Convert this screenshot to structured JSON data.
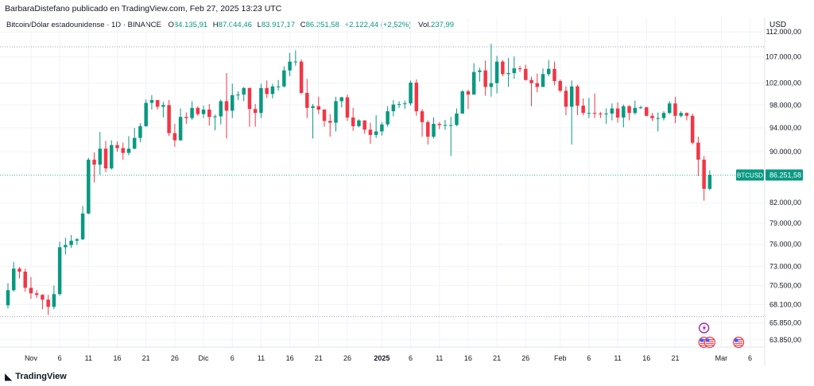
{
  "header": {
    "published": "BarbaraDistefano publicado en TradingView.com, Feb 27, 2025 13:23 UTC",
    "symbol": "Bitcoin/Dólar estadounidense · 1D · BINANCE",
    "open_label": "O",
    "open": "84.135,91",
    "high_label": "H",
    "high": "87.044,46",
    "low_label": "L",
    "low": "83.917,17",
    "close_label": "C",
    "close": "86.251,58",
    "change": "+2.122,44 (+2,52%)",
    "vol_label": "Vol.",
    "vol": "237,99"
  },
  "currency": "USD",
  "brand": {
    "name": "TradingView",
    "icon": "tradingview-logo-icon"
  },
  "colors": {
    "up": "#089981",
    "down": "#f23645",
    "grid": "#f0f3fa",
    "price_line": "#089981"
  },
  "chart_data": {
    "type": "candlestick",
    "symbol": "BTCUSD",
    "interval": "1D",
    "last_price_label": "BTCUSD",
    "last_price": 86251.58,
    "last_price_text": "86.251,58",
    "y_scale": "log",
    "ylim": [
      63000,
      115000
    ],
    "y_ticks": [
      {
        "value": 112000,
        "label": "112.000,00"
      },
      {
        "value": 107000,
        "label": "107.000,00"
      },
      {
        "value": 102000,
        "label": "102.000,00"
      },
      {
        "value": 98000,
        "label": "98.000,00"
      },
      {
        "value": 94000,
        "label": "94.000,00"
      },
      {
        "value": 90000,
        "label": "90.000,00"
      },
      {
        "value": 82000,
        "label": "82.000,00"
      },
      {
        "value": 79000,
        "label": "79.000,00"
      },
      {
        "value": 76000,
        "label": "76.000,00"
      },
      {
        "value": 73000,
        "label": "73.000,00"
      },
      {
        "value": 70500,
        "label": "70.500,00"
      },
      {
        "value": 68100,
        "label": "68.100,00"
      },
      {
        "value": 65850,
        "label": "65.850,00"
      },
      {
        "value": 63850,
        "label": "63.850,00"
      }
    ],
    "x_ticks": [
      {
        "date": "2024-11-01",
        "label": "Nov"
      },
      {
        "date": "2024-11-06",
        "label": "6"
      },
      {
        "date": "2024-11-11",
        "label": "11"
      },
      {
        "date": "2024-11-16",
        "label": "16"
      },
      {
        "date": "2024-11-21",
        "label": "21"
      },
      {
        "date": "2024-11-26",
        "label": "26"
      },
      {
        "date": "2024-12-01",
        "label": "Dic"
      },
      {
        "date": "2024-12-06",
        "label": "6"
      },
      {
        "date": "2024-12-11",
        "label": "11"
      },
      {
        "date": "2024-12-16",
        "label": "16"
      },
      {
        "date": "2024-12-21",
        "label": "21"
      },
      {
        "date": "2024-12-26",
        "label": "26"
      },
      {
        "date": "2025-01-01",
        "label": "2025",
        "bold": true
      },
      {
        "date": "2025-01-06",
        "label": "6"
      },
      {
        "date": "2025-01-11",
        "label": "11"
      },
      {
        "date": "2025-01-16",
        "label": "16"
      },
      {
        "date": "2025-01-21",
        "label": "21"
      },
      {
        "date": "2025-01-26",
        "label": "26"
      },
      {
        "date": "2025-02-01",
        "label": "Feb"
      },
      {
        "date": "2025-02-06",
        "label": "6"
      },
      {
        "date": "2025-02-11",
        "label": "11"
      },
      {
        "date": "2025-02-16",
        "label": "16"
      },
      {
        "date": "2025-02-21",
        "label": "21"
      },
      {
        "date": "2025-03-01",
        "label": "Mar"
      },
      {
        "date": "2025-03-06",
        "label": "6"
      }
    ],
    "dotted_lines": [
      109000,
      66600
    ],
    "date_range": [
      "2024-10-28",
      "2025-03-08"
    ],
    "candles": [
      {
        "date": "2024-10-28",
        "o": 68000,
        "h": 70800,
        "l": 67600,
        "c": 69900
      },
      {
        "date": "2024-10-29",
        "o": 69900,
        "h": 73600,
        "l": 69700,
        "c": 72700
      },
      {
        "date": "2024-10-30",
        "o": 72700,
        "h": 72900,
        "l": 71400,
        "c": 72300
      },
      {
        "date": "2024-10-31",
        "o": 72300,
        "h": 72700,
        "l": 69700,
        "c": 70200
      },
      {
        "date": "2024-11-01",
        "o": 70200,
        "h": 71600,
        "l": 68800,
        "c": 69500
      },
      {
        "date": "2024-11-02",
        "o": 69500,
        "h": 69900,
        "l": 68900,
        "c": 69300
      },
      {
        "date": "2024-11-03",
        "o": 69300,
        "h": 69400,
        "l": 67500,
        "c": 68700
      },
      {
        "date": "2024-11-04",
        "o": 68700,
        "h": 69300,
        "l": 66800,
        "c": 67800
      },
      {
        "date": "2024-11-05",
        "o": 67800,
        "h": 70500,
        "l": 67500,
        "c": 69400
      },
      {
        "date": "2024-11-06",
        "o": 69400,
        "h": 76400,
        "l": 69200,
        "c": 75600
      },
      {
        "date": "2024-11-07",
        "o": 75600,
        "h": 76900,
        "l": 74600,
        "c": 75900
      },
      {
        "date": "2024-11-08",
        "o": 75900,
        "h": 77300,
        "l": 75500,
        "c": 76500
      },
      {
        "date": "2024-11-09",
        "o": 76500,
        "h": 76900,
        "l": 75900,
        "c": 76700
      },
      {
        "date": "2024-11-10",
        "o": 76700,
        "h": 81500,
        "l": 76600,
        "c": 80400
      },
      {
        "date": "2024-11-11",
        "o": 80400,
        "h": 89000,
        "l": 80300,
        "c": 88700
      },
      {
        "date": "2024-11-12",
        "o": 88700,
        "h": 89900,
        "l": 85100,
        "c": 87900
      },
      {
        "date": "2024-11-13",
        "o": 87900,
        "h": 93300,
        "l": 86300,
        "c": 90500
      },
      {
        "date": "2024-11-14",
        "o": 90500,
        "h": 91800,
        "l": 86700,
        "c": 87300
      },
      {
        "date": "2024-11-15",
        "o": 87300,
        "h": 91900,
        "l": 87100,
        "c": 91100
      },
      {
        "date": "2024-11-16",
        "o": 91100,
        "h": 91700,
        "l": 90000,
        "c": 90600
      },
      {
        "date": "2024-11-17",
        "o": 90600,
        "h": 91500,
        "l": 88700,
        "c": 89800
      },
      {
        "date": "2024-11-18",
        "o": 89800,
        "h": 92600,
        "l": 89400,
        "c": 90500
      },
      {
        "date": "2024-11-19",
        "o": 90500,
        "h": 94000,
        "l": 90400,
        "c": 92300
      },
      {
        "date": "2024-11-20",
        "o": 92300,
        "h": 94800,
        "l": 91600,
        "c": 94300
      },
      {
        "date": "2024-11-21",
        "o": 94300,
        "h": 99000,
        "l": 94200,
        "c": 98400
      },
      {
        "date": "2024-11-22",
        "o": 98400,
        "h": 99800,
        "l": 97200,
        "c": 98900
      },
      {
        "date": "2024-11-23",
        "o": 98900,
        "h": 98900,
        "l": 97200,
        "c": 97700
      },
      {
        "date": "2024-11-24",
        "o": 97700,
        "h": 98600,
        "l": 95800,
        "c": 98000
      },
      {
        "date": "2024-11-25",
        "o": 98000,
        "h": 98900,
        "l": 92600,
        "c": 93100
      },
      {
        "date": "2024-11-26",
        "o": 93100,
        "h": 94700,
        "l": 90800,
        "c": 91900
      },
      {
        "date": "2024-11-27",
        "o": 91900,
        "h": 97400,
        "l": 91800,
        "c": 95900
      },
      {
        "date": "2024-11-28",
        "o": 95900,
        "h": 96700,
        "l": 94700,
        "c": 95700
      },
      {
        "date": "2024-11-29",
        "o": 95700,
        "h": 98700,
        "l": 95400,
        "c": 97500
      },
      {
        "date": "2024-11-30",
        "o": 97500,
        "h": 97800,
        "l": 96100,
        "c": 96400
      },
      {
        "date": "2024-12-01",
        "o": 96400,
        "h": 97900,
        "l": 95700,
        "c": 97200
      },
      {
        "date": "2024-12-02",
        "o": 97200,
        "h": 98200,
        "l": 94400,
        "c": 95900
      },
      {
        "date": "2024-12-03",
        "o": 95900,
        "h": 96300,
        "l": 93600,
        "c": 96000
      },
      {
        "date": "2024-12-04",
        "o": 96000,
        "h": 99000,
        "l": 94600,
        "c": 98700
      },
      {
        "date": "2024-12-05",
        "o": 98700,
        "h": 103900,
        "l": 92200,
        "c": 97000
      },
      {
        "date": "2024-12-06",
        "o": 97000,
        "h": 101900,
        "l": 95700,
        "c": 99800
      },
      {
        "date": "2024-12-07",
        "o": 99800,
        "h": 100500,
        "l": 98900,
        "c": 99900
      },
      {
        "date": "2024-12-08",
        "o": 99900,
        "h": 101300,
        "l": 98700,
        "c": 101100
      },
      {
        "date": "2024-12-09",
        "o": 101100,
        "h": 101200,
        "l": 94200,
        "c": 97300
      },
      {
        "date": "2024-12-10",
        "o": 97300,
        "h": 98200,
        "l": 94200,
        "c": 96600
      },
      {
        "date": "2024-12-11",
        "o": 96600,
        "h": 101900,
        "l": 95700,
        "c": 101100
      },
      {
        "date": "2024-12-12",
        "o": 101100,
        "h": 102500,
        "l": 99300,
        "c": 100000
      },
      {
        "date": "2024-12-13",
        "o": 100000,
        "h": 101900,
        "l": 99200,
        "c": 101400
      },
      {
        "date": "2024-12-14",
        "o": 101400,
        "h": 102600,
        "l": 100600,
        "c": 101400
      },
      {
        "date": "2024-12-15",
        "o": 101400,
        "h": 105200,
        "l": 101200,
        "c": 104400
      },
      {
        "date": "2024-12-16",
        "o": 104400,
        "h": 107800,
        "l": 103300,
        "c": 106100
      },
      {
        "date": "2024-12-17",
        "o": 106100,
        "h": 108300,
        "l": 105300,
        "c": 106100
      },
      {
        "date": "2024-12-18",
        "o": 106100,
        "h": 106500,
        "l": 100000,
        "c": 100200
      },
      {
        "date": "2024-12-19",
        "o": 100200,
        "h": 102800,
        "l": 95700,
        "c": 97500
      },
      {
        "date": "2024-12-20",
        "o": 97500,
        "h": 98200,
        "l": 92200,
        "c": 97800
      },
      {
        "date": "2024-12-21",
        "o": 97800,
        "h": 99500,
        "l": 96400,
        "c": 97200
      },
      {
        "date": "2024-12-22",
        "o": 97200,
        "h": 97300,
        "l": 94200,
        "c": 95200
      },
      {
        "date": "2024-12-23",
        "o": 95200,
        "h": 96400,
        "l": 92500,
        "c": 94900
      },
      {
        "date": "2024-12-24",
        "o": 94900,
        "h": 99500,
        "l": 93400,
        "c": 98700
      },
      {
        "date": "2024-12-25",
        "o": 98700,
        "h": 99500,
        "l": 97600,
        "c": 99400
      },
      {
        "date": "2024-12-26",
        "o": 99400,
        "h": 99900,
        "l": 95200,
        "c": 95800
      },
      {
        "date": "2024-12-27",
        "o": 95800,
        "h": 97500,
        "l": 93500,
        "c": 94300
      },
      {
        "date": "2024-12-28",
        "o": 94300,
        "h": 95500,
        "l": 94100,
        "c": 95300
      },
      {
        "date": "2024-12-29",
        "o": 95300,
        "h": 95300,
        "l": 93000,
        "c": 93700
      },
      {
        "date": "2024-12-30",
        "o": 93700,
        "h": 94900,
        "l": 91300,
        "c": 92800
      },
      {
        "date": "2024-12-31",
        "o": 92800,
        "h": 96200,
        "l": 92300,
        "c": 93400
      },
      {
        "date": "2025-01-01",
        "o": 93400,
        "h": 95000,
        "l": 92700,
        "c": 94600
      },
      {
        "date": "2025-01-02",
        "o": 94600,
        "h": 97800,
        "l": 94200,
        "c": 96900
      },
      {
        "date": "2025-01-03",
        "o": 96900,
        "h": 98900,
        "l": 96000,
        "c": 98100
      },
      {
        "date": "2025-01-04",
        "o": 98100,
        "h": 98700,
        "l": 97500,
        "c": 98200
      },
      {
        "date": "2025-01-05",
        "o": 98200,
        "h": 98800,
        "l": 97300,
        "c": 98300
      },
      {
        "date": "2025-01-06",
        "o": 98300,
        "h": 102500,
        "l": 97900,
        "c": 102100
      },
      {
        "date": "2025-01-07",
        "o": 102100,
        "h": 102700,
        "l": 96100,
        "c": 96900
      },
      {
        "date": "2025-01-08",
        "o": 96900,
        "h": 97300,
        "l": 92500,
        "c": 95000
      },
      {
        "date": "2025-01-09",
        "o": 95000,
        "h": 95300,
        "l": 91200,
        "c": 92500
      },
      {
        "date": "2025-01-10",
        "o": 92500,
        "h": 95800,
        "l": 92200,
        "c": 94700
      },
      {
        "date": "2025-01-11",
        "o": 94700,
        "h": 95000,
        "l": 93800,
        "c": 94500
      },
      {
        "date": "2025-01-12",
        "o": 94500,
        "h": 95400,
        "l": 93700,
        "c": 94500
      },
      {
        "date": "2025-01-13",
        "o": 94500,
        "h": 95900,
        "l": 89300,
        "c": 94500
      },
      {
        "date": "2025-01-14",
        "o": 94500,
        "h": 97400,
        "l": 94300,
        "c": 96500
      },
      {
        "date": "2025-01-15",
        "o": 96500,
        "h": 100700,
        "l": 96500,
        "c": 100500
      },
      {
        "date": "2025-01-16",
        "o": 100500,
        "h": 100800,
        "l": 97300,
        "c": 99900
      },
      {
        "date": "2025-01-17",
        "o": 99900,
        "h": 105800,
        "l": 99900,
        "c": 104100
      },
      {
        "date": "2025-01-18",
        "o": 104100,
        "h": 104900,
        "l": 102300,
        "c": 104400
      },
      {
        "date": "2025-01-19",
        "o": 104400,
        "h": 106300,
        "l": 99700,
        "c": 101300
      },
      {
        "date": "2025-01-20",
        "o": 101300,
        "h": 109600,
        "l": 99500,
        "c": 102000
      },
      {
        "date": "2025-01-21",
        "o": 102000,
        "h": 107200,
        "l": 100100,
        "c": 106100
      },
      {
        "date": "2025-01-22",
        "o": 106100,
        "h": 106400,
        "l": 103300,
        "c": 103700
      },
      {
        "date": "2025-01-23",
        "o": 103700,
        "h": 106800,
        "l": 101300,
        "c": 103900
      },
      {
        "date": "2025-01-24",
        "o": 103900,
        "h": 107100,
        "l": 102800,
        "c": 104800
      },
      {
        "date": "2025-01-25",
        "o": 104800,
        "h": 105300,
        "l": 104100,
        "c": 104700
      },
      {
        "date": "2025-01-26",
        "o": 104700,
        "h": 105500,
        "l": 102500,
        "c": 102600
      },
      {
        "date": "2025-01-27",
        "o": 102600,
        "h": 103200,
        "l": 97800,
        "c": 102000
      },
      {
        "date": "2025-01-28",
        "o": 102000,
        "h": 103800,
        "l": 100300,
        "c": 101300
      },
      {
        "date": "2025-01-29",
        "o": 101300,
        "h": 104800,
        "l": 101300,
        "c": 103700
      },
      {
        "date": "2025-01-30",
        "o": 103700,
        "h": 106400,
        "l": 103300,
        "c": 104700
      },
      {
        "date": "2025-01-31",
        "o": 104700,
        "h": 106100,
        "l": 101600,
        "c": 102400
      },
      {
        "date": "2025-02-01",
        "o": 102400,
        "h": 102700,
        "l": 100300,
        "c": 100600
      },
      {
        "date": "2025-02-02",
        "o": 100600,
        "h": 101400,
        "l": 96200,
        "c": 97700
      },
      {
        "date": "2025-02-03",
        "o": 97700,
        "h": 102500,
        "l": 91200,
        "c": 101400
      },
      {
        "date": "2025-02-04",
        "o": 101400,
        "h": 101700,
        "l": 96200,
        "c": 97900
      },
      {
        "date": "2025-02-05",
        "o": 97900,
        "h": 99200,
        "l": 96200,
        "c": 96600
      },
      {
        "date": "2025-02-06",
        "o": 96600,
        "h": 99300,
        "l": 95700,
        "c": 96600
      },
      {
        "date": "2025-02-07",
        "o": 96600,
        "h": 100100,
        "l": 95700,
        "c": 96500
      },
      {
        "date": "2025-02-08",
        "o": 96500,
        "h": 96800,
        "l": 95700,
        "c": 96400
      },
      {
        "date": "2025-02-09",
        "o": 96400,
        "h": 97400,
        "l": 94700,
        "c": 96500
      },
      {
        "date": "2025-02-10",
        "o": 96500,
        "h": 98300,
        "l": 95300,
        "c": 97400
      },
      {
        "date": "2025-02-11",
        "o": 97400,
        "h": 98500,
        "l": 94900,
        "c": 95800
      },
      {
        "date": "2025-02-12",
        "o": 95800,
        "h": 98100,
        "l": 94100,
        "c": 97800
      },
      {
        "date": "2025-02-13",
        "o": 97800,
        "h": 98000,
        "l": 95300,
        "c": 96600
      },
      {
        "date": "2025-02-14",
        "o": 96600,
        "h": 98800,
        "l": 96300,
        "c": 97500
      },
      {
        "date": "2025-02-15",
        "o": 97500,
        "h": 97900,
        "l": 97300,
        "c": 97600
      },
      {
        "date": "2025-02-16",
        "o": 97600,
        "h": 97700,
        "l": 96000,
        "c": 96100
      },
      {
        "date": "2025-02-17",
        "o": 96100,
        "h": 96600,
        "l": 95200,
        "c": 95700
      },
      {
        "date": "2025-02-18",
        "o": 95700,
        "h": 96700,
        "l": 93400,
        "c": 95700
      },
      {
        "date": "2025-02-19",
        "o": 95700,
        "h": 96900,
        "l": 95300,
        "c": 96600
      },
      {
        "date": "2025-02-20",
        "o": 96600,
        "h": 98700,
        "l": 96400,
        "c": 98300
      },
      {
        "date": "2025-02-21",
        "o": 98300,
        "h": 99500,
        "l": 94800,
        "c": 96100
      },
      {
        "date": "2025-02-22",
        "o": 96100,
        "h": 96900,
        "l": 95800,
        "c": 96600
      },
      {
        "date": "2025-02-23",
        "o": 96600,
        "h": 96700,
        "l": 95300,
        "c": 96100
      },
      {
        "date": "2025-02-24",
        "o": 96100,
        "h": 96500,
        "l": 91200,
        "c": 91500
      },
      {
        "date": "2025-02-25",
        "o": 91500,
        "h": 92500,
        "l": 86100,
        "c": 88700
      },
      {
        "date": "2025-02-26",
        "o": 88700,
        "h": 89300,
        "l": 82300,
        "c": 84100
      },
      {
        "date": "2025-02-27",
        "o": 84100,
        "h": 87000,
        "l": 83900,
        "c": 86300
      }
    ],
    "event_markers": [
      {
        "date": "2025-02-26",
        "icon": "lightning-icon",
        "row": 1
      },
      {
        "date": "2025-02-26",
        "icon": "us-flag-icon",
        "row": 2
      },
      {
        "date": "2025-02-27",
        "icon": "us-flag-icon",
        "row": 2
      },
      {
        "date": "2025-03-04",
        "icon": "us-flag-icon",
        "row": 2
      }
    ]
  }
}
